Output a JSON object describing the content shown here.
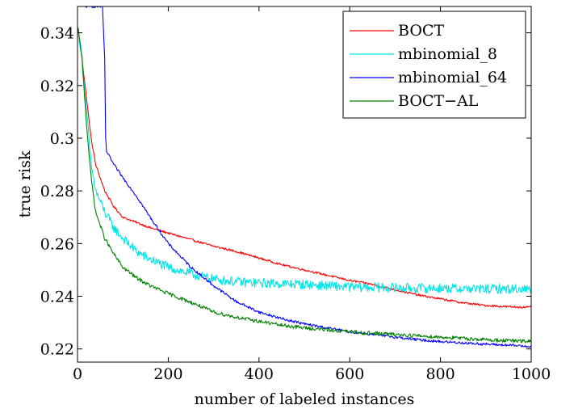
{
  "chart_data": {
    "type": "line",
    "title": "",
    "xlabel": "number of labeled instances",
    "ylabel": "true risk",
    "xlim": [
      0,
      1000
    ],
    "ylim": [
      0.215,
      0.35
    ],
    "xticks": [
      0,
      200,
      400,
      600,
      800,
      1000
    ],
    "xtick_labels": [
      "0",
      "200",
      "400",
      "600",
      "800",
      "1000"
    ],
    "yticks": [
      0.22,
      0.24,
      0.26,
      0.28,
      0.3,
      0.32,
      0.34
    ],
    "ytick_labels": [
      "0.22",
      "0.24",
      "0.26",
      "0.28",
      "0.3",
      "0.32",
      "0.34"
    ],
    "grid": false,
    "legend_position": "top-right",
    "series": [
      {
        "name": "BOCT",
        "color": "#ff0000",
        "noise": 0.0004,
        "points": [
          [
            1,
            0.342
          ],
          [
            10,
            0.33
          ],
          [
            20,
            0.315
          ],
          [
            30,
            0.3
          ],
          [
            40,
            0.29
          ],
          [
            60,
            0.28
          ],
          [
            80,
            0.274
          ],
          [
            100,
            0.27
          ],
          [
            130,
            0.268
          ],
          [
            160,
            0.266
          ],
          [
            200,
            0.264
          ],
          [
            260,
            0.261
          ],
          [
            300,
            0.259
          ],
          [
            350,
            0.257
          ],
          [
            400,
            0.2545
          ],
          [
            450,
            0.252
          ],
          [
            500,
            0.25
          ],
          [
            550,
            0.248
          ],
          [
            600,
            0.246
          ],
          [
            650,
            0.2445
          ],
          [
            700,
            0.2425
          ],
          [
            750,
            0.2405
          ],
          [
            800,
            0.239
          ],
          [
            850,
            0.2375
          ],
          [
            900,
            0.2365
          ],
          [
            950,
            0.236
          ],
          [
            1000,
            0.2358
          ]
        ]
      },
      {
        "name": "mbinomial_8",
        "color": "#00e5e5",
        "noise": 0.0018,
        "points": [
          [
            1,
            0.342
          ],
          [
            10,
            0.33
          ],
          [
            20,
            0.31
          ],
          [
            30,
            0.29
          ],
          [
            40,
            0.28
          ],
          [
            60,
            0.272
          ],
          [
            80,
            0.266
          ],
          [
            100,
            0.262
          ],
          [
            130,
            0.257
          ],
          [
            160,
            0.254
          ],
          [
            200,
            0.251
          ],
          [
            260,
            0.248
          ],
          [
            300,
            0.2465
          ],
          [
            350,
            0.2455
          ],
          [
            400,
            0.245
          ],
          [
            500,
            0.2445
          ],
          [
            600,
            0.2435
          ],
          [
            700,
            0.2432
          ],
          [
            800,
            0.243
          ],
          [
            900,
            0.2428
          ],
          [
            1000,
            0.2428
          ]
        ]
      },
      {
        "name": "mbinomial_64",
        "color": "#0000ff",
        "noise": 0.0005,
        "points": [
          [
            12,
            0.35
          ],
          [
            25,
            0.35
          ],
          [
            40,
            0.35
          ],
          [
            55,
            0.35
          ],
          [
            60,
            0.33
          ],
          [
            62,
            0.3
          ],
          [
            64,
            0.295
          ],
          [
            80,
            0.29
          ],
          [
            100,
            0.285
          ],
          [
            130,
            0.278
          ],
          [
            160,
            0.27
          ],
          [
            200,
            0.26
          ],
          [
            250,
            0.251
          ],
          [
            300,
            0.244
          ],
          [
            350,
            0.238
          ],
          [
            400,
            0.234
          ],
          [
            450,
            0.2315
          ],
          [
            500,
            0.2295
          ],
          [
            550,
            0.228
          ],
          [
            600,
            0.2265
          ],
          [
            650,
            0.2255
          ],
          [
            700,
            0.2245
          ],
          [
            750,
            0.2235
          ],
          [
            800,
            0.2228
          ],
          [
            900,
            0.2218
          ],
          [
            1000,
            0.221
          ]
        ]
      },
      {
        "name": "BOCT−AL",
        "color": "#008000",
        "noise": 0.0007,
        "points": [
          [
            1,
            0.342
          ],
          [
            10,
            0.33
          ],
          [
            20,
            0.305
          ],
          [
            30,
            0.285
          ],
          [
            40,
            0.272
          ],
          [
            60,
            0.262
          ],
          [
            80,
            0.256
          ],
          [
            100,
            0.251
          ],
          [
            130,
            0.247
          ],
          [
            160,
            0.244
          ],
          [
            200,
            0.241
          ],
          [
            260,
            0.237
          ],
          [
            300,
            0.234
          ],
          [
            350,
            0.232
          ],
          [
            400,
            0.2305
          ],
          [
            450,
            0.229
          ],
          [
            500,
            0.228
          ],
          [
            600,
            0.2265
          ],
          [
            700,
            0.2255
          ],
          [
            800,
            0.2245
          ],
          [
            900,
            0.2235
          ],
          [
            1000,
            0.2228
          ]
        ]
      }
    ]
  }
}
